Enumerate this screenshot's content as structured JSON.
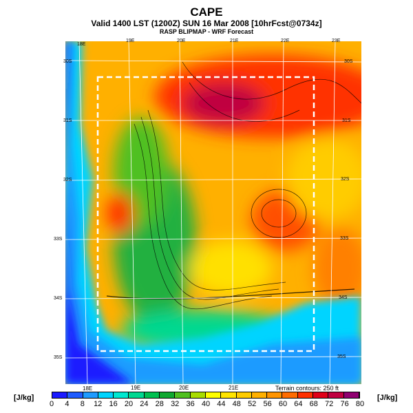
{
  "header": {
    "title": "CAPE",
    "valid_line": "Valid 1400 LST (1200Z) SUN 16 Mar 2008 [10hrFcst@0734z]",
    "source_line": "RASP BLIPMAP - WRF Forecast"
  },
  "map": {
    "top_lon_labels": [
      "18E",
      "19E",
      "20E",
      "21E",
      "22E",
      "23E"
    ],
    "bottom_lon_labels": [
      "18E",
      "19E",
      "20E",
      "21E"
    ],
    "left_lat_labels": [
      "30S",
      "31S",
      "32S",
      "33S",
      "34S",
      "35S"
    ],
    "right_lat_labels": [
      "30S",
      "31S",
      "32S",
      "33S",
      "34S",
      "35S"
    ],
    "terrain_note": "Terrain contours: 250 ft"
  },
  "colorbar": {
    "unit": "[J/kg]",
    "ticks": [
      "0",
      "4",
      "8",
      "12",
      "16",
      "20",
      "24",
      "28",
      "32",
      "36",
      "40",
      "44",
      "48",
      "52",
      "56",
      "60",
      "64",
      "68",
      "72",
      "76",
      "80"
    ],
    "colors": [
      "#1a1aff",
      "#1f5cff",
      "#1e9bff",
      "#00d4ff",
      "#00e8d0",
      "#00d890",
      "#00c050",
      "#10a830",
      "#50c020",
      "#a8dc00",
      "#ffff00",
      "#ffe400",
      "#ffcc00",
      "#ffb000",
      "#ff9400",
      "#ff6c00",
      "#ff3000",
      "#e00018",
      "#c00040",
      "#900070"
    ]
  }
}
